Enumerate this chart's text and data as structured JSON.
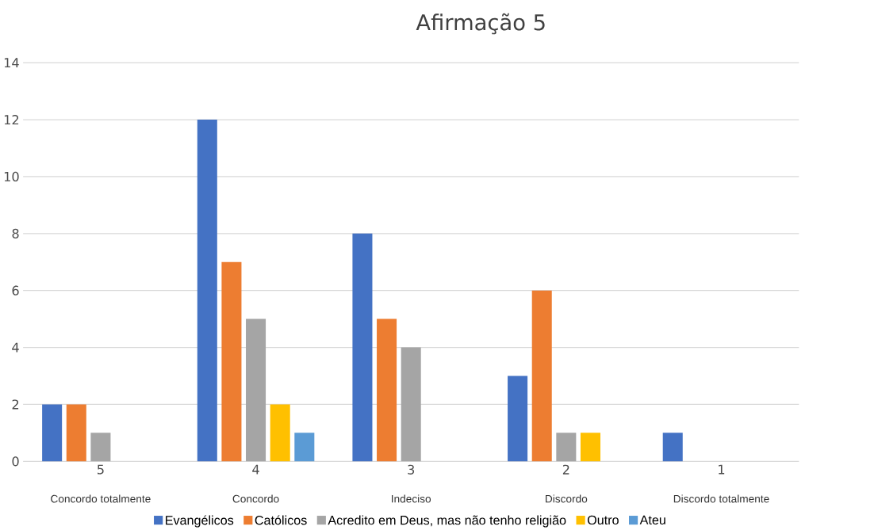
{
  "chart_data": {
    "type": "bar",
    "title": "Afirmação 5",
    "categories": [
      "5",
      "4",
      "3",
      "2",
      "1"
    ],
    "annotations": [
      "Concordo totalmente",
      "Concordo",
      "Indeciso",
      "Discordo",
      "Discordo totalmente"
    ],
    "series": [
      {
        "name": "Evangélicos",
        "color": "#4472c4",
        "values": [
          2,
          12,
          8,
          3,
          1
        ]
      },
      {
        "name": "Católicos",
        "color": "#ed7d31",
        "values": [
          2,
          7,
          5,
          6,
          null
        ]
      },
      {
        "name": "Acredito em Deus, mas não tenho religião",
        "color": "#a5a5a5",
        "values": [
          1,
          5,
          4,
          1,
          null
        ]
      },
      {
        "name": "Outro",
        "color": "#ffc000",
        "values": [
          null,
          2,
          null,
          1,
          null
        ]
      },
      {
        "name": "Ateu",
        "color": "#5b9bd5",
        "values": [
          null,
          1,
          null,
          null,
          null
        ]
      }
    ],
    "ylim": [
      0,
      14
    ],
    "yticks": [
      0,
      2,
      4,
      6,
      8,
      10,
      12,
      14
    ],
    "grid": "y",
    "legend": "bottom"
  }
}
